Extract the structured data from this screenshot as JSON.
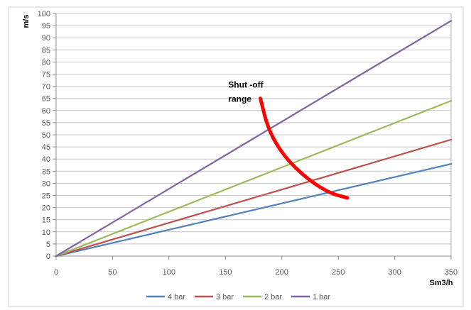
{
  "chart_data": {
    "type": "line",
    "title": "",
    "xlabel": "Sm3/h",
    "ylabel": "m/s",
    "xlim": [
      0,
      350
    ],
    "ylim": [
      0,
      100
    ],
    "x_ticks": [
      0,
      50,
      100,
      150,
      200,
      250,
      300,
      350
    ],
    "y_ticks": [
      0,
      5,
      10,
      15,
      20,
      25,
      30,
      35,
      40,
      45,
      50,
      55,
      60,
      65,
      70,
      75,
      80,
      85,
      90,
      95,
      100
    ],
    "grid": "horizontal",
    "legend_position": "bottom",
    "x": [
      0,
      350
    ],
    "series": [
      {
        "name": "4 bar",
        "values": [
          0,
          38
        ],
        "color": "#4f81bd"
      },
      {
        "name": "3 bar",
        "values": [
          0,
          48
        ],
        "color": "#c0504d"
      },
      {
        "name": "2 bar",
        "values": [
          0,
          64
        ],
        "color": "#9bbb59"
      },
      {
        "name": "1 bar",
        "values": [
          0,
          97
        ],
        "color": "#8064a2"
      }
    ],
    "annotation": {
      "lines": [
        "Shut -off",
        "range"
      ],
      "arrow_color": "#ff0000",
      "arrow_path": [
        [
          181,
          65
        ],
        [
          188,
          52
        ],
        [
          202,
          41
        ],
        [
          222,
          32
        ],
        [
          242,
          26
        ],
        [
          258,
          24
        ]
      ]
    }
  }
}
